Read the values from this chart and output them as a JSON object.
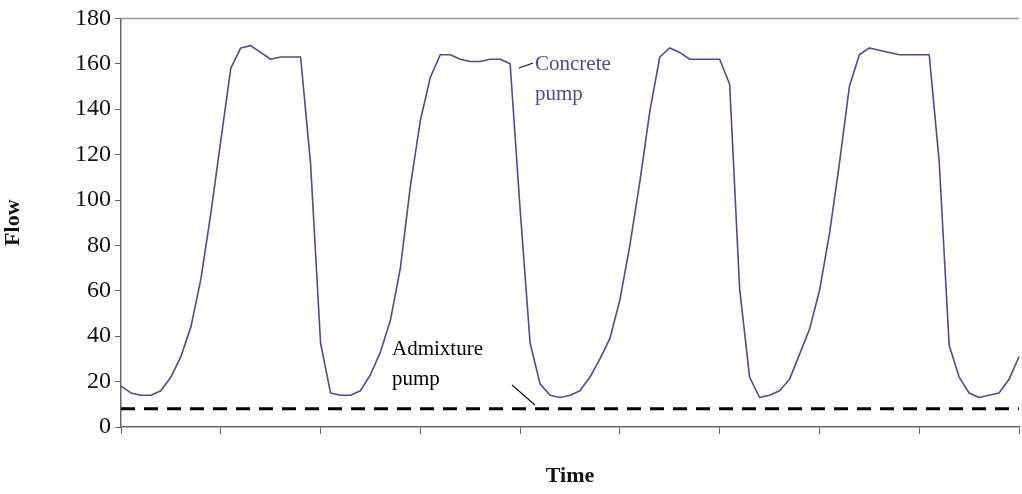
{
  "chart_data": {
    "type": "line",
    "xlabel": "Time",
    "ylabel": "Flow",
    "categories": [
      null,
      null,
      null,
      null,
      null,
      null,
      null,
      null,
      null,
      null,
      null,
      null,
      null,
      null,
      null,
      null,
      null,
      null,
      null,
      null,
      null,
      null,
      null,
      null,
      null,
      null,
      null,
      null,
      null,
      null,
      null,
      null,
      null,
      null,
      null,
      null,
      null,
      null,
      null,
      null,
      null,
      null,
      null,
      null,
      null,
      null,
      null,
      null,
      null,
      null,
      null,
      null,
      null,
      null,
      null,
      null,
      null,
      null,
      null,
      null,
      null,
      null,
      null,
      null,
      null,
      null,
      null,
      null,
      null,
      null,
      null,
      null,
      null,
      null,
      null,
      null,
      null,
      null,
      null,
      null,
      null,
      null,
      null,
      null,
      null,
      null,
      null,
      null,
      null,
      null,
      null
    ],
    "ylim": [
      0,
      180
    ],
    "yticks": [
      0,
      20,
      40,
      60,
      80,
      100,
      120,
      140,
      160,
      180
    ],
    "grid": false,
    "marker": "none",
    "series": [
      {
        "name": "Concrete pump",
        "color": "#4b4b9a",
        "line_style": "solid",
        "values": [
          18,
          15,
          14,
          14,
          16,
          22,
          31,
          44,
          65,
          94,
          126,
          158,
          167,
          168,
          165,
          162,
          163,
          163,
          163,
          116,
          37,
          15,
          14,
          14,
          16,
          23,
          33,
          47,
          70,
          106,
          135,
          154,
          164,
          164,
          162,
          161,
          161,
          162,
          162,
          160,
          96,
          37,
          19,
          14,
          13,
          14,
          16,
          22,
          30,
          39,
          56,
          80,
          108,
          139,
          163,
          167,
          165,
          162,
          162,
          162,
          162,
          151,
          61,
          22,
          13,
          14,
          16,
          21,
          32,
          43,
          60,
          85,
          116,
          150,
          164,
          167,
          166,
          165,
          164,
          164,
          164,
          164,
          117,
          36,
          22,
          15,
          13,
          14,
          15,
          21,
          31
        ]
      },
      {
        "name": "Admixture pump",
        "color": "#000000",
        "line_style": "dashed",
        "values": [
          8,
          8,
          8,
          8,
          8,
          8,
          8,
          8,
          8,
          8,
          8,
          8,
          8,
          8,
          8,
          8,
          8,
          8,
          8,
          8,
          8,
          8,
          8,
          8,
          8,
          8,
          8,
          8,
          8,
          8,
          8,
          8,
          8,
          8,
          8,
          8,
          8,
          8,
          8,
          8,
          8,
          8,
          8,
          8,
          8,
          8,
          8,
          8,
          8,
          8,
          8,
          8,
          8,
          8,
          8,
          8,
          8,
          8,
          8,
          8,
          8,
          8,
          8,
          8,
          8,
          8,
          8,
          8,
          8,
          8,
          8,
          8,
          8,
          8,
          8,
          8,
          8,
          8,
          8,
          8,
          8,
          8,
          8,
          8,
          8,
          8,
          8,
          8,
          8,
          8,
          8
        ]
      }
    ]
  }
}
